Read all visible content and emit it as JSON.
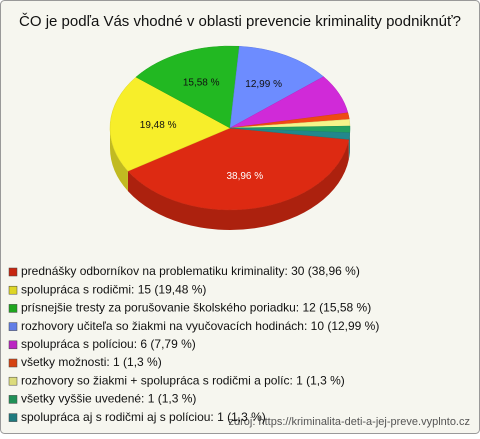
{
  "chart_data": {
    "type": "pie",
    "title": "ČO je podľa Vás vhodné v oblasti prevencie kriminality podniknúť?",
    "categories": [
      "prednášky odborníkov na problematiku kriminality: 30 (38,96 %)",
      "spolupráca s rodičmi: 15 (19,48 %)",
      "prísnejšie tresty za porušovanie školského poriadku: 12 (15,58 %)",
      "rozhovory učiteľa so žiakmi na vyučovacích hodinách: 10 (12,99 %)",
      "spolupráca s políciou: 6 (7,79 %)",
      "všetky možnosti: 1 (1,3 %)",
      "rozhovory so žiakmi + spolupráca s rodičmi a políc: 1 (1,3 %)",
      "všetky vyššie uvedené: 1 (1,3 %)",
      "spolupráca   aj s   rodičmi aj s  políciou: 1 (1,3 %)"
    ],
    "values": [
      38.96,
      19.48,
      15.58,
      12.99,
      7.79,
      1.3,
      1.3,
      1.3,
      1.3
    ],
    "value_labels": [
      "38,96 %",
      "19,48 %",
      "15,58 %",
      "12,99 %",
      null,
      null,
      null,
      null,
      null
    ],
    "colors": [
      "#dd2a12",
      "#f7ee2a",
      "#22b822",
      "#6d8cff",
      "#d02ad8",
      "#ee4a14",
      "#f4f48a",
      "#22a060",
      "#22888c"
    ],
    "source": "zdroj: https://kriminalita-deti-a-jej-preve.vyplnto.cz"
  }
}
